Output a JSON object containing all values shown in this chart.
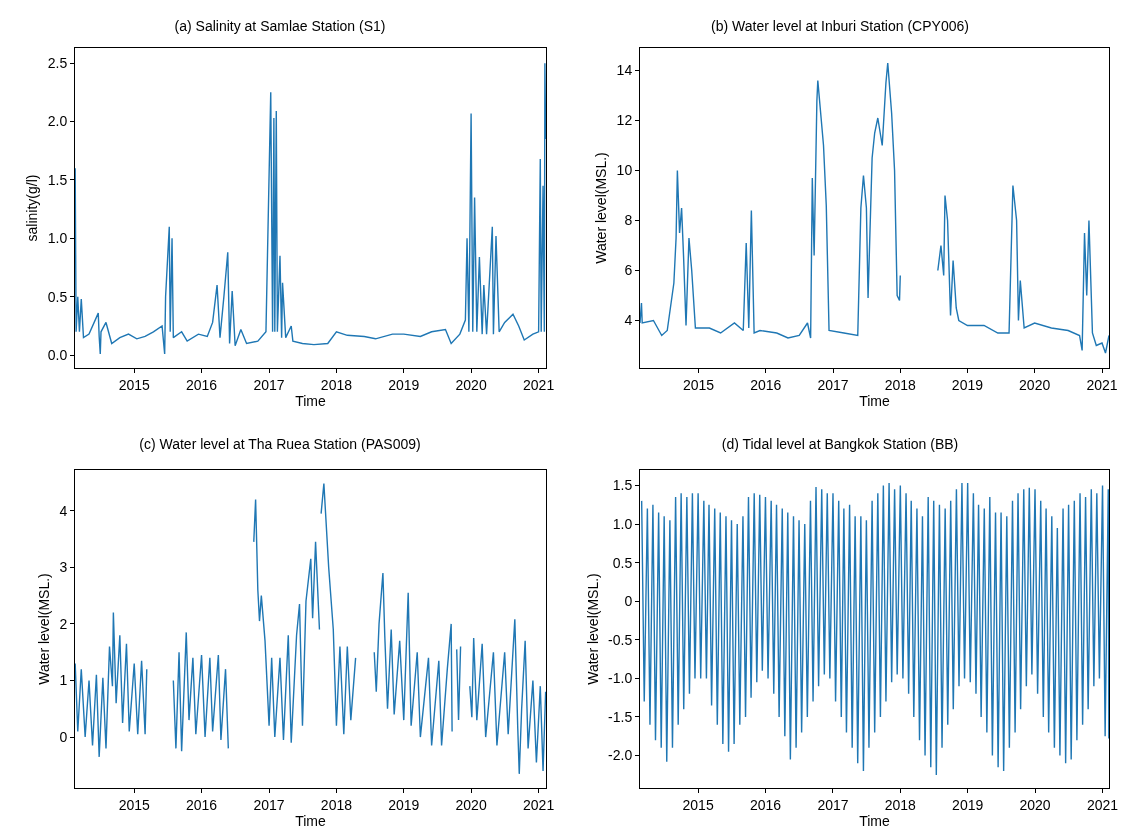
{
  "chart_data": [
    {
      "type": "line",
      "title": "(a) Salinity at Samlae Station (S1)",
      "xlabel": "Time",
      "ylabel": "salinity(g/l)",
      "color": "#1f77b4",
      "xlim": [
        "2014-02-14",
        "2021-02-10"
      ],
      "xticks": [
        {
          "value": "2015-01-01",
          "label": "2015"
        },
        {
          "value": "2016-01-01",
          "label": "2016"
        },
        {
          "value": "2017-01-01",
          "label": "2017"
        },
        {
          "value": "2018-01-01",
          "label": "2018"
        },
        {
          "value": "2019-01-01",
          "label": "2019"
        },
        {
          "value": "2020-01-01",
          "label": "2020"
        },
        {
          "value": "2021-01-01",
          "label": "2021"
        }
      ],
      "ylim": [
        -0.11,
        2.63
      ],
      "yticks": [
        {
          "value": 0,
          "label": "0.0"
        },
        {
          "value": 0.5,
          "label": "0.5"
        },
        {
          "value": 1,
          "label": "1.0"
        },
        {
          "value": 1.5,
          "label": "1.5"
        },
        {
          "value": 2,
          "label": "2.0"
        },
        {
          "value": 2.5,
          "label": "2.5"
        }
      ],
      "x": [
        "2014-02-15",
        "2014-02-20",
        "2014-03-01",
        "2014-03-10",
        "2014-03-20",
        "2014-04-01",
        "2014-05-01",
        "2014-06-20",
        "2014-06-25",
        "2014-07-01",
        "2014-07-05",
        "2014-08-01",
        "2014-09-01",
        "2014-10-15",
        "2014-12-01",
        "2015-01-15",
        "2015-03-01",
        "2015-04-15",
        "2015-06-01",
        "2015-06-15",
        "2015-06-20",
        "2015-07-10",
        "2015-07-15",
        "2015-07-25",
        "2015-08-01",
        "2015-09-15",
        "2015-10-15",
        "2015-12-15",
        "2016-02-01",
        "2016-03-01",
        "2016-03-25",
        "2016-04-10",
        "2016-05-01",
        "2016-05-22",
        "2016-06-01",
        "2016-06-15",
        "2016-07-01",
        "2016-08-01",
        "2016-09-01",
        "2016-11-01",
        "2016-12-15",
        "2017-01-10",
        "2017-01-20",
        "2017-01-27",
        "2017-02-01",
        "2017-02-09",
        "2017-02-15",
        "2017-03-01",
        "2017-03-10",
        "2017-03-15",
        "2017-04-01",
        "2017-05-01",
        "2017-05-10",
        "2017-07-01",
        "2017-09-01",
        "2017-11-15",
        "2018-01-01",
        "2018-03-01",
        "2018-06-01",
        "2018-08-01",
        "2018-11-01",
        "2019-01-01",
        "2019-04-01",
        "2019-06-01",
        "2019-08-15",
        "2019-09-15",
        "2019-11-01",
        "2019-12-01",
        "2019-12-10",
        "2019-12-20",
        "2020-01-01",
        "2020-01-10",
        "2020-01-20",
        "2020-02-01",
        "2020-02-15",
        "2020-03-01",
        "2020-03-10",
        "2020-03-25",
        "2020-04-25",
        "2020-05-01",
        "2020-05-15",
        "2020-06-01",
        "2020-07-01",
        "2020-08-15",
        "2020-09-15",
        "2020-10-15",
        "2020-12-01",
        "2021-01-01",
        "2021-01-10",
        "2021-01-15",
        "2021-01-25",
        "2021-02-01",
        "2021-02-04",
        "2021-02-08"
      ],
      "values": [
        1.6,
        0.2,
        0.5,
        0.2,
        0.48,
        0.15,
        0.18,
        0.36,
        0.16,
        0.01,
        0.2,
        0.28,
        0.1,
        0.15,
        0.18,
        0.14,
        0.16,
        0.2,
        0.25,
        0.01,
        0.5,
        1.1,
        0.2,
        1.0,
        0.15,
        0.2,
        0.12,
        0.18,
        0.16,
        0.28,
        0.6,
        0.15,
        0.5,
        0.88,
        0.1,
        0.55,
        0.08,
        0.22,
        0.1,
        0.12,
        0.2,
        2.25,
        0.2,
        2.03,
        0.2,
        2.09,
        0.2,
        0.85,
        0.15,
        0.62,
        0.15,
        0.25,
        0.12,
        0.1,
        0.09,
        0.1,
        0.2,
        0.17,
        0.16,
        0.14,
        0.18,
        0.18,
        0.16,
        0.2,
        0.22,
        0.1,
        0.18,
        0.3,
        1.0,
        0.2,
        2.07,
        0.2,
        1.35,
        0.2,
        0.84,
        0.18,
        0.6,
        0.18,
        1.1,
        0.18,
        1.02,
        0.2,
        0.28,
        0.35,
        0.25,
        0.13,
        0.18,
        0.2,
        1.68,
        0.2,
        1.45,
        0.2,
        2.5,
        1.85
      ]
    },
    {
      "type": "line",
      "title": "(b) Water level at Inburi Station (CPY006)",
      "xlabel": "Time",
      "ylabel": "Water level(MSL.)",
      "color": "#1f77b4",
      "xlim": [
        "2014-02-17",
        "2021-02-08"
      ],
      "xticks": [
        {
          "value": "2015-01-01",
          "label": "2015"
        },
        {
          "value": "2016-01-01",
          "label": "2016"
        },
        {
          "value": "2017-01-01",
          "label": "2017"
        },
        {
          "value": "2018-01-01",
          "label": "2018"
        },
        {
          "value": "2019-01-01",
          "label": "2019"
        },
        {
          "value": "2020-01-01",
          "label": "2020"
        },
        {
          "value": "2021-01-01",
          "label": "2021"
        }
      ],
      "ylim": [
        2.1,
        14.9
      ],
      "yticks": [
        4,
        6,
        8,
        10,
        12,
        14
      ],
      "x": [
        "2014-02-17",
        "2014-02-25",
        "2014-03-01",
        "2014-05-01",
        "2014-06-15",
        "2014-07-15",
        "2014-08-20",
        "2014-09-01",
        "2014-09-08",
        "2014-09-20",
        "2014-10-01",
        "2014-10-12",
        "2014-10-25",
        "2014-11-10",
        "2014-11-25",
        "2014-12-15",
        "2015-03-01",
        "2015-05-01",
        "2015-07-15",
        "2015-09-01",
        "2015-09-17",
        "2015-10-01",
        "2015-10-15",
        "2015-10-30",
        "2015-12-01",
        "2016-03-01",
        "2016-05-01",
        "2016-07-01",
        "2016-08-15",
        "2016-09-01",
        "2016-09-10",
        "2016-09-20",
        "2016-10-05",
        "2016-10-10",
        "2016-11-10",
        "2016-11-25",
        "2016-12-10",
        "2017-03-01",
        "2017-05-15",
        "2017-06-01",
        "2017-06-15",
        "2017-07-01",
        "2017-07-10",
        "2017-08-01",
        "2017-08-15",
        "2017-09-01",
        "2017-09-25",
        "2017-10-15",
        "2017-10-25",
        "2017-11-15",
        "2017-12-01",
        "2017-12-15",
        "2017-12-28",
        "2018-01-01",
        "2018-04-01",
        "2018-07-24",
        "2018-08-10",
        "2018-08-25",
        "2018-09-01",
        "2018-09-15",
        "2018-10-01",
        "2018-10-15",
        "2018-11-01",
        "2018-11-15",
        "2019-01-01",
        "2019-04-01",
        "2019-06-15",
        "2019-08-15",
        "2019-09-05",
        "2019-09-25",
        "2019-10-05",
        "2019-10-15",
        "2019-11-05",
        "2020-01-01",
        "2020-04-01",
        "2020-07-01",
        "2020-09-01",
        "2020-09-15",
        "2020-09-28",
        "2020-10-10",
        "2020-10-22",
        "2020-11-10",
        "2020-12-01",
        "2021-01-01",
        "2021-01-20",
        "2021-02-08"
      ],
      "values": [
        3.9,
        4.7,
        3.9,
        4.0,
        3.4,
        3.6,
        5.5,
        7.3,
        10.0,
        7.5,
        8.5,
        6.5,
        3.8,
        7.3,
        6.0,
        3.7,
        3.7,
        3.5,
        3.9,
        3.6,
        7.1,
        3.7,
        8.4,
        3.5,
        3.6,
        3.5,
        3.3,
        3.4,
        3.9,
        3.3,
        9.7,
        6.6,
        12.8,
        13.6,
        11.0,
        8.6,
        3.6,
        3.5,
        3.4,
        8.5,
        9.8,
        8.5,
        4.9,
        10.5,
        11.5,
        12.1,
        11.0,
        13.5,
        14.3,
        12.3,
        10.0,
        5.0,
        4.8,
        5.8,
        null,
        6.0,
        7.0,
        5.8,
        9.0,
        8.0,
        4.2,
        6.4,
        4.5,
        4.0,
        3.8,
        3.8,
        3.5,
        3.5,
        9.4,
        8.0,
        4.0,
        5.6,
        3.7,
        3.9,
        3.7,
        3.6,
        3.4,
        2.8,
        7.5,
        5.0,
        8.0,
        3.5,
        3.0,
        3.1,
        2.7,
        3.4
      ]
    },
    {
      "type": "line",
      "title": "(c) Water level at Tha Ruea Station (PAS009)",
      "xlabel": "Time",
      "ylabel": "Water level(MSL.)",
      "color": "#1f77b4",
      "xlim": [
        "2014-02-14",
        "2021-02-10"
      ],
      "xticks": [
        {
          "value": "2015-01-01",
          "label": "2015"
        },
        {
          "value": "2016-01-01",
          "label": "2016"
        },
        {
          "value": "2017-01-01",
          "label": "2017"
        },
        {
          "value": "2018-01-01",
          "label": "2018"
        },
        {
          "value": "2019-01-01",
          "label": "2019"
        },
        {
          "value": "2020-01-01",
          "label": "2020"
        },
        {
          "value": "2021-01-01",
          "label": "2021"
        }
      ],
      "ylim": [
        -0.9,
        4.72
      ],
      "yticks": [
        0,
        1,
        2,
        3,
        4
      ],
      "x": [
        "2014-02-15",
        "2014-03-01",
        "2014-03-20",
        "2014-04-10",
        "2014-05-01",
        "2014-05-20",
        "2014-06-10",
        "2014-06-25",
        "2014-07-15",
        "2014-08-01",
        "2014-08-20",
        "2014-09-05",
        "2014-09-10",
        "2014-09-25",
        "2014-10-15",
        "2014-10-30",
        "2014-11-20",
        "2014-12-05",
        "2015-01-01",
        "2015-01-20",
        "2015-02-10",
        "2015-03-01",
        "2015-03-10",
        "2015-05-01",
        "2015-08-01",
        "2015-08-15",
        "2015-09-01",
        "2015-09-15",
        "2015-10-10",
        "2015-10-25",
        "2015-11-15",
        "2015-12-01",
        "2016-01-01",
        "2016-01-20",
        "2016-02-15",
        "2016-03-01",
        "2016-04-01",
        "2016-04-15",
        "2016-05-10",
        "2016-05-25",
        "2016-07-15",
        "2016-10-10",
        "2016-10-20",
        "2016-11-01",
        "2016-11-10",
        "2016-11-20",
        "2016-12-10",
        "2017-01-01",
        "2017-01-15",
        "2017-02-01",
        "2017-03-01",
        "2017-03-20",
        "2017-04-15",
        "2017-05-01",
        "2017-05-20",
        "2017-05-30",
        "2017-06-15",
        "2017-07-01",
        "2017-07-20",
        "2017-08-15",
        "2017-08-25",
        "2017-09-10",
        "2017-10-01",
        "2017-10-05",
        "2017-10-10",
        "2017-10-25",
        "2017-11-20",
        "2017-12-15",
        "2018-01-01",
        "2018-01-20",
        "2018-02-10",
        "2018-03-01",
        "2018-03-20",
        "2018-04-15",
        "2018-06-01",
        "2018-07-25",
        "2018-08-05",
        "2018-08-20",
        "2018-09-10",
        "2018-09-20",
        "2018-10-05",
        "2018-10-25",
        "2018-11-10",
        "2018-12-10",
        "2019-01-01",
        "2019-01-25",
        "2019-02-10",
        "2019-03-15",
        "2019-04-01",
        "2019-05-15",
        "2019-06-01",
        "2019-07-10",
        "2019-07-25",
        "2019-08-25",
        "2019-09-15",
        "2019-09-20",
        "2019-10-01",
        "2019-10-15",
        "2019-10-25",
        "2019-11-05",
        "2019-11-20",
        "2019-12-25",
        "2020-01-05",
        "2020-01-15",
        "2020-02-01",
        "2020-03-01",
        "2020-03-20",
        "2020-05-01",
        "2020-05-20",
        "2020-07-01",
        "2020-07-20",
        "2020-08-25",
        "2020-09-10",
        "2020-09-18",
        "2020-10-01",
        "2020-10-20",
        "2020-11-05",
        "2020-12-01",
        "2020-12-20",
        "2021-01-10",
        "2021-01-25",
        "2021-02-08"
      ],
      "values": [
        1.3,
        0.1,
        1.2,
        0.0,
        1.0,
        -0.15,
        1.1,
        -0.35,
        1.05,
        -0.2,
        1.6,
        0.9,
        2.2,
        0.6,
        1.8,
        0.25,
        1.65,
        0.1,
        1.3,
        0.05,
        1.35,
        0.05,
        1.2,
        null,
        1.0,
        -0.2,
        1.5,
        -0.25,
        1.85,
        0.3,
        1.4,
        0.05,
        1.45,
        0.0,
        1.4,
        0.1,
        1.45,
        -0.05,
        1.2,
        -0.2,
        null,
        3.45,
        4.2,
        2.6,
        2.05,
        2.5,
        1.7,
        0.2,
        1.4,
        0.0,
        1.4,
        -0.05,
        1.8,
        -0.1,
        1.15,
        1.8,
        2.35,
        0.2,
        2.4,
        3.15,
        2.1,
        3.45,
        1.9,
        null,
        3.95,
        4.48,
        3.0,
        1.9,
        0.2,
        1.6,
        0.05,
        1.6,
        0.3,
        1.4,
        null,
        1.5,
        0.8,
        2.0,
        2.9,
        1.8,
        0.5,
        1.9,
        0.4,
        1.7,
        0.3,
        2.55,
        0.2,
        1.5,
        0.0,
        1.4,
        -0.15,
        1.35,
        -0.15,
        1.2,
        2.0,
        0.1,
        null,
        1.55,
        0.3,
        1.6,
        null,
        0.9,
        0.35,
        1.75,
        0.3,
        1.65,
        0.0,
        1.5,
        -0.15,
        1.5,
        0.05,
        2.08,
        0.15,
        -0.65,
        0.5,
        1.7,
        -0.2,
        1.0,
        -0.45,
        0.9,
        -0.6,
        0.8
      ]
    },
    {
      "type": "line",
      "title": "(d) Tidal level at Bangkok Station (BB)",
      "xlabel": "Time",
      "ylabel": "Water level(MSL.)",
      "color": "#1f77b4",
      "xlim": [
        "2014-02-20",
        "2021-02-05"
      ],
      "xticks": [
        {
          "value": "2015-01-01",
          "label": "2015"
        },
        {
          "value": "2016-01-01",
          "label": "2016"
        },
        {
          "value": "2017-01-01",
          "label": "2017"
        },
        {
          "value": "2018-01-01",
          "label": "2018"
        },
        {
          "value": "2019-01-01",
          "label": "2019"
        },
        {
          "value": "2020-01-01",
          "label": "2020"
        },
        {
          "value": "2021-01-01",
          "label": "2021"
        }
      ],
      "ylim": [
        -2.42,
        1.7
      ],
      "yticks": [
        {
          "value": -2,
          "label": "-2.0"
        },
        {
          "value": -1.5,
          "label": "-1.5"
        },
        {
          "value": -1,
          "label": "-1.0"
        },
        {
          "value": -0.5,
          "label": "-0.5"
        },
        0,
        0.5,
        {
          "value": 1,
          "label": "1.0"
        },
        1.5
      ],
      "x": [
        "2014-03-01",
        "2014-03-15",
        "2014-04-01",
        "2014-04-15",
        "2014-05-01",
        "2014-05-15",
        "2014-06-01",
        "2014-06-15",
        "2014-07-01",
        "2014-07-15",
        "2014-08-01",
        "2014-08-15",
        "2014-09-01",
        "2014-09-15",
        "2014-10-01",
        "2014-10-15",
        "2014-11-01",
        "2014-11-15",
        "2014-12-01",
        "2014-12-15",
        "2015-01-01",
        "2015-01-15",
        "2015-02-01",
        "2015-02-15",
        "2015-03-01",
        "2015-03-15",
        "2015-04-01",
        "2015-04-15",
        "2015-05-01",
        "2015-05-15",
        "2015-06-01",
        "2015-06-15",
        "2015-07-01",
        "2015-07-15",
        "2015-08-01",
        "2015-08-15",
        "2015-09-01",
        "2015-09-15",
        "2015-10-01",
        "2015-10-15",
        "2015-11-01",
        "2015-11-15",
        "2015-12-01",
        "2015-12-15",
        "2016-01-01",
        "2016-01-15",
        "2016-02-01",
        "2016-02-15",
        "2016-03-01",
        "2016-03-15",
        "2016-04-01",
        "2016-04-15",
        "2016-05-01",
        "2016-05-15",
        "2016-06-01",
        "2016-06-15",
        "2016-07-01",
        "2016-07-15",
        "2016-08-01",
        "2016-08-15",
        "2016-09-01",
        "2016-09-15",
        "2016-10-01",
        "2016-10-15",
        "2016-11-01",
        "2016-11-15",
        "2016-12-01",
        "2016-12-15",
        "2017-01-01",
        "2017-01-15",
        "2017-02-01",
        "2017-02-15",
        "2017-03-01",
        "2017-03-15",
        "2017-04-01",
        "2017-04-15",
        "2017-05-01",
        "2017-05-15",
        "2017-06-01",
        "2017-06-15",
        "2017-07-01",
        "2017-07-15",
        "2017-08-01",
        "2017-08-15",
        "2017-09-01",
        "2017-09-15",
        "2017-10-01",
        "2017-10-15",
        "2017-11-01",
        "2017-11-15",
        "2017-12-01",
        "2017-12-15",
        "2018-01-01",
        "2018-01-15",
        "2018-02-01",
        "2018-02-15",
        "2018-03-01",
        "2018-03-15",
        "2018-04-01",
        "2018-04-15",
        "2018-05-01",
        "2018-05-15",
        "2018-06-01",
        "2018-06-15",
        "2018-07-01",
        "2018-07-15",
        "2018-08-01",
        "2018-08-15",
        "2018-09-01",
        "2018-09-15",
        "2018-10-01",
        "2018-10-15",
        "2018-11-01",
        "2018-11-15",
        "2018-12-01",
        "2018-12-15",
        "2019-01-01",
        "2019-01-15",
        "2019-02-01",
        "2019-02-15",
        "2019-03-01",
        "2019-03-15",
        "2019-04-01",
        "2019-04-15",
        "2019-05-01",
        "2019-05-15",
        "2019-06-01",
        "2019-06-15",
        "2019-07-01",
        "2019-07-15",
        "2019-08-01",
        "2019-08-15",
        "2019-09-01",
        "2019-09-15",
        "2019-10-01",
        "2019-10-15",
        "2019-11-01",
        "2019-11-15",
        "2019-12-01",
        "2019-12-15",
        "2020-01-01",
        "2020-01-15",
        "2020-02-01",
        "2020-02-15",
        "2020-03-01",
        "2020-03-15",
        "2020-04-01",
        "2020-04-15",
        "2020-05-01",
        "2020-05-15",
        "2020-06-01",
        "2020-06-15",
        "2020-07-01",
        "2020-07-15",
        "2020-08-01",
        "2020-08-15",
        "2020-09-01",
        "2020-09-15",
        "2020-10-01",
        "2020-10-15",
        "2020-11-01",
        "2020-11-15",
        "2020-12-01",
        "2020-12-15",
        "2021-01-01",
        "2021-01-15",
        "2021-02-01",
        "2021-02-04"
      ],
      "values": [
        1.3,
        -1.3,
        1.2,
        -1.6,
        1.25,
        -1.8,
        1.15,
        -1.9,
        1.1,
        -2.08,
        1.05,
        -1.9,
        1.35,
        -1.6,
        1.4,
        -1.4,
        1.35,
        -1.2,
        1.4,
        -1.0,
        1.4,
        -1.0,
        1.3,
        -1.0,
        1.25,
        -1.35,
        1.2,
        -1.6,
        1.15,
        -1.85,
        1.1,
        -1.95,
        1.05,
        -1.85,
        1.0,
        -1.6,
        1.1,
        -1.5,
        1.35,
        -1.25,
        1.4,
        -1.05,
        1.38,
        -0.9,
        1.35,
        -1.0,
        1.3,
        -1.2,
        1.25,
        -1.5,
        1.2,
        -1.75,
        1.15,
        -2.05,
        1.1,
        -1.9,
        1.05,
        -1.7,
        1.0,
        -1.5,
        1.3,
        -1.3,
        1.48,
        -1.1,
        1.45,
        -0.95,
        1.4,
        -1.0,
        1.4,
        -1.3,
        1.3,
        -1.5,
        1.2,
        -1.7,
        1.25,
        -1.9,
        1.1,
        -2.1,
        1.1,
        -2.2,
        1.05,
        -1.9,
        1.3,
        -1.7,
        1.4,
        -1.5,
        1.5,
        -1.3,
        1.53,
        -1.05,
        1.45,
        -0.95,
        1.5,
        -1.0,
        1.4,
        -1.2,
        1.3,
        -1.5,
        1.2,
        -1.8,
        1.1,
        -2.0,
        1.35,
        -2.15,
        1.3,
        -2.25,
        1.25,
        -1.9,
        1.2,
        -1.6,
        1.3,
        -1.4,
        1.45,
        -1.1,
        1.53,
        -1.0,
        1.53,
        -1.05,
        1.4,
        -1.2,
        1.25,
        -1.5,
        1.2,
        -1.7,
        1.35,
        -2.0,
        1.15,
        -2.15,
        1.15,
        -2.2,
        1.1,
        -1.9,
        1.3,
        -1.7,
        1.4,
        -1.4,
        1.45,
        -1.1,
        1.47,
        -0.95,
        1.45,
        -1.2,
        1.3,
        -1.5,
        1.2,
        -1.7,
        1.1,
        -1.9,
        0.95,
        -2.0,
        1.2,
        -2.1,
        1.25,
        -2.05,
        1.3,
        -1.8,
        1.4,
        -1.6,
        1.35,
        -1.4,
        1.45,
        -1.1,
        1.4,
        -1.0,
        1.5,
        -1.75,
        1.45,
        -1.78
      ]
    }
  ]
}
